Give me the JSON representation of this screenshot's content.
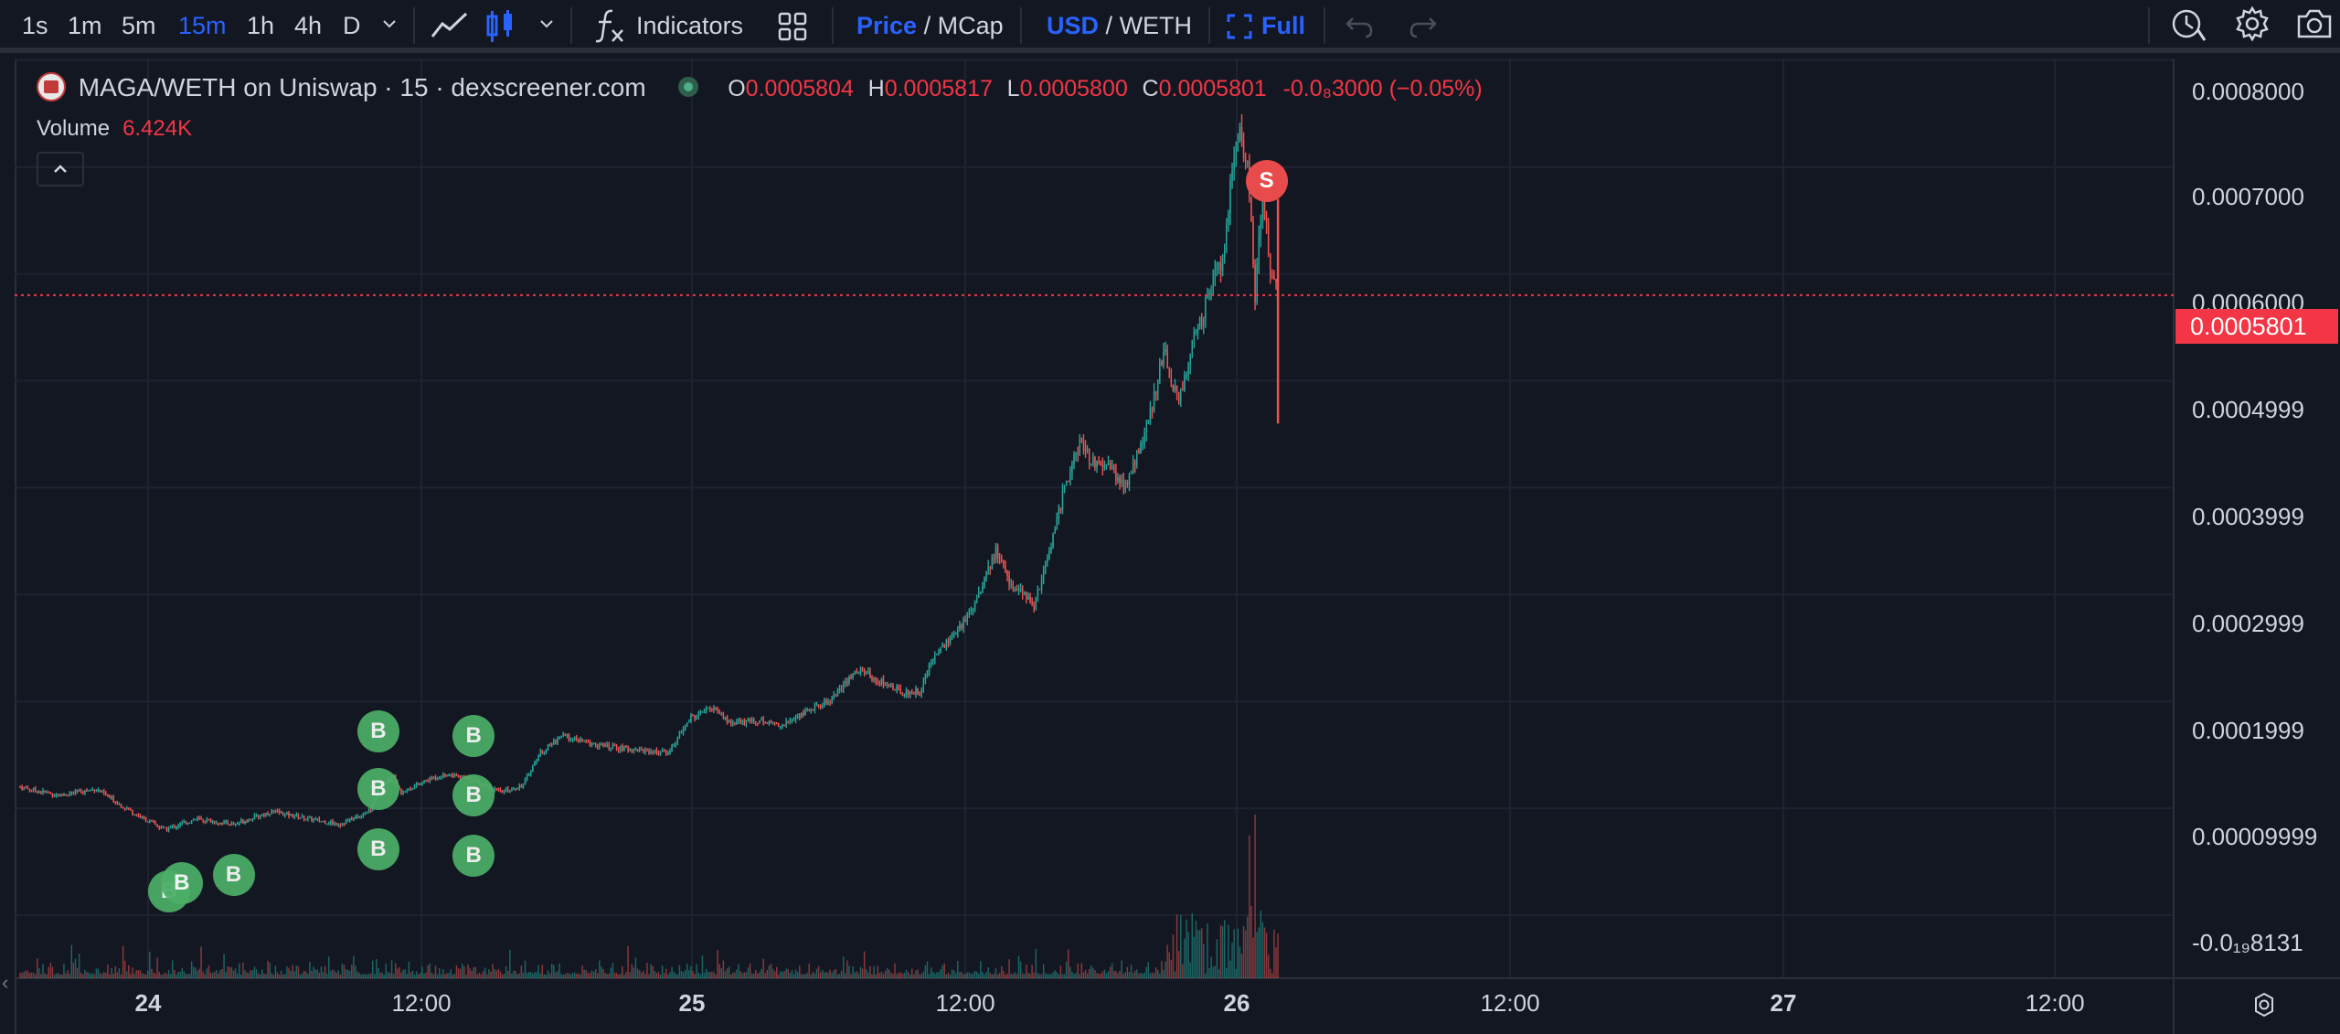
{
  "toolbar": {
    "timeframes": [
      "1s",
      "1m",
      "5m",
      "15m",
      "1h",
      "4h",
      "D"
    ],
    "active_timeframe": "15m",
    "indicators_label": "Indicators",
    "price_label": "Price",
    "mcap_label": "MCap",
    "usd_label": "USD",
    "weth_label": "WETH",
    "full_label": "Full",
    "separator": "/"
  },
  "legend": {
    "title": "MAGA/WETH on Uniswap · 15 · dexscreener.com",
    "o_key": "O",
    "o_val": "0.0005804",
    "h_key": "H",
    "h_val": "0.0005817",
    "l_key": "L",
    "l_val": "0.0005800",
    "c_key": "C",
    "c_val": "0.0005801",
    "change": "-0.0₈3000 (−0.05%)",
    "volume_key": "Volume",
    "volume_val": "6.424K"
  },
  "current_price_label": "0.0005801",
  "colors": {
    "up": "#26a69a",
    "down": "#ef5350",
    "buy": "#4caf68",
    "sell": "#e84b4b",
    "bg": "#131722",
    "grid": "#1f2330"
  },
  "chart_data": {
    "type": "candlestick",
    "pair": "MAGA/WETH",
    "interval": "15",
    "y_ticks": [
      "0.0008000",
      "0.0007000",
      "0.0006000",
      "0.0004999",
      "0.0003999",
      "0.0002999",
      "0.0001999",
      "0.00009999",
      "-0.0₁₉8131"
    ],
    "ylim": [
      0.0,
      0.0008
    ],
    "x_ticks": [
      {
        "label": "24",
        "bold": true
      },
      {
        "label": "12:00",
        "bold": false
      },
      {
        "label": "25",
        "bold": true
      },
      {
        "label": "12:00",
        "bold": false
      },
      {
        "label": "26",
        "bold": true
      },
      {
        "label": "12:00",
        "bold": false
      },
      {
        "label": "27",
        "bold": true
      },
      {
        "label": "12:00",
        "bold": false
      }
    ],
    "price_path": [
      [
        0,
        0.00012
      ],
      [
        5,
        0.000112
      ],
      [
        10,
        0.000118
      ],
      [
        15,
        9.5e-05
      ],
      [
        19,
        8e-05
      ],
      [
        23,
        9e-05
      ],
      [
        28,
        8.5e-05
      ],
      [
        33,
        9.7e-05
      ],
      [
        38,
        9e-05
      ],
      [
        42,
        8.5e-05
      ],
      [
        46,
        9.8e-05
      ],
      [
        47,
        0.00012
      ],
      [
        49,
        0.00013
      ],
      [
        50,
        0.000115
      ],
      [
        54,
        0.000128
      ],
      [
        56,
        0.000132
      ],
      [
        60,
        0.000125
      ],
      [
        63,
        0.000115
      ],
      [
        66,
        0.000122
      ],
      [
        68,
        0.00015
      ],
      [
        71,
        0.000168
      ],
      [
        75,
        0.00016
      ],
      [
        80,
        0.000155
      ],
      [
        85,
        0.000152
      ],
      [
        88,
        0.000185
      ],
      [
        91,
        0.000195
      ],
      [
        93,
        0.00018
      ],
      [
        97,
        0.000182
      ],
      [
        100,
        0.000178
      ],
      [
        103,
        0.00019
      ],
      [
        106,
        0.0002
      ],
      [
        110,
        0.00023
      ],
      [
        113,
        0.000218
      ],
      [
        116,
        0.000208
      ],
      [
        118,
        0.00021
      ],
      [
        120,
        0.000245
      ],
      [
        123,
        0.000265
      ],
      [
        125,
        0.00029
      ],
      [
        128,
        0.00034
      ],
      [
        130,
        0.00031
      ],
      [
        133,
        0.00029
      ],
      [
        135,
        0.00034
      ],
      [
        137,
        0.0004
      ],
      [
        139,
        0.00044
      ],
      [
        141,
        0.00042
      ],
      [
        143,
        0.000418
      ],
      [
        145,
        0.0004
      ],
      [
        148,
        0.00046
      ],
      [
        150,
        0.00053
      ],
      [
        152,
        0.000478
      ],
      [
        154,
        0.00054
      ],
      [
        156,
        0.00058
      ],
      [
        158,
        0.00062
      ],
      [
        159,
        0.0007
      ],
      [
        160,
        0.00074
      ],
      [
        161,
        0.0007
      ],
      [
        162,
        0.00058
      ],
      [
        163,
        0.00068
      ],
      [
        164,
        0.0006
      ],
      [
        165,
        0.00058
      ]
    ],
    "markers": [
      {
        "type": "buy",
        "label": "B",
        "x": 19.5,
        "price": 2.2e-05
      },
      {
        "type": "buy",
        "label": "B",
        "x": 21.2,
        "price": 3e-05
      },
      {
        "type": "buy",
        "label": "B",
        "x": 28.0,
        "price": 3.8e-05
      },
      {
        "type": "buy",
        "label": "B",
        "x": 47.0,
        "price": 0.000172
      },
      {
        "type": "buy",
        "label": "B",
        "x": 47.0,
        "price": 0.000118
      },
      {
        "type": "buy",
        "label": "B",
        "x": 47.0,
        "price": 6.2e-05
      },
      {
        "type": "buy",
        "label": "B",
        "x": 59.5,
        "price": 0.000168
      },
      {
        "type": "buy",
        "label": "B",
        "x": 59.5,
        "price": 0.000112
      },
      {
        "type": "buy",
        "label": "B",
        "x": 59.5,
        "price": 5.6e-05
      },
      {
        "type": "sell",
        "label": "S",
        "x": 163.5,
        "price": 0.000687
      }
    ],
    "current_price": 0.0005801,
    "volume_unit": "K",
    "last_volume": 6.424
  }
}
